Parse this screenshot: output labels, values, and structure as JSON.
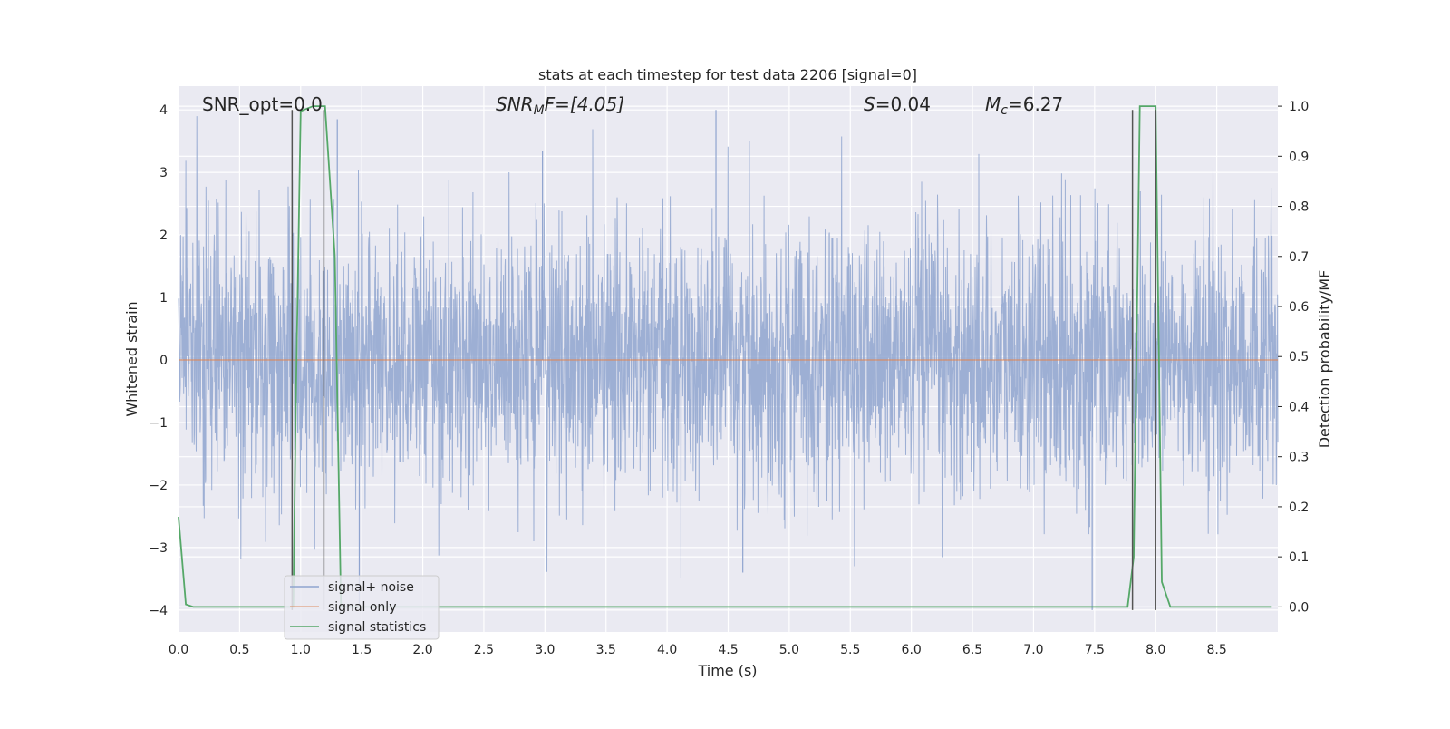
{
  "chart_data": {
    "type": "line",
    "title": "stats at each timestep for test data 2206 [signal=0]",
    "xlabel": "Time (s)",
    "ylabel": "Whitened strain",
    "y2label": "Detection probability/MF",
    "xlim": [
      0,
      9
    ],
    "ylim": [
      -4.35,
      4.38
    ],
    "y2lim": [
      -0.05,
      1.04
    ],
    "xticks": [
      "0.0",
      "0.5",
      "1.0",
      "1.5",
      "2.0",
      "2.5",
      "3.0",
      "3.5",
      "4.0",
      "4.5",
      "5.0",
      "5.5",
      "6.0",
      "6.5",
      "7.0",
      "7.5",
      "8.0",
      "8.5"
    ],
    "yticks": [
      "4",
      "3",
      "2",
      "1",
      "0",
      "−1",
      "−2",
      "−3",
      "−4"
    ],
    "y2ticks": [
      "1.0",
      "0.9",
      "0.8",
      "0.7",
      "0.6",
      "0.5",
      "0.4",
      "0.3",
      "0.2",
      "0.1",
      "0.0"
    ],
    "annotations": {
      "snr_opt": "SNR_opt=0.0",
      "snr_mf_base": "SNR",
      "snr_mf_sub": "M",
      "snr_mf_rest": "F=[4.05]",
      "s_base": "S",
      "s_rest": "=0.04",
      "mc_base": "M",
      "mc_sub": "c",
      "mc_rest": "=6.27"
    },
    "legend": {
      "placement": "lower-left",
      "entries": [
        "signal+ noise",
        "signal only",
        "signal statistics"
      ]
    },
    "grid": true,
    "series": [
      {
        "name": "signal+ noise",
        "color": "#8fa4cf",
        "description": "whitened strain noise, roughly Gaussian, peaks up to about 4 and down to about -4"
      },
      {
        "name": "signal only",
        "color": "#dd8452",
        "x": [
          0,
          9
        ],
        "y": [
          0,
          0
        ]
      },
      {
        "name": "signal statistics",
        "color": "#55a868",
        "axis": "right",
        "x": [
          0.0,
          0.06,
          0.12,
          0.18,
          0.5,
          0.9,
          0.94,
          0.96,
          1.0,
          1.1,
          1.2,
          1.28,
          1.33,
          1.36,
          1.5,
          5.0,
          7.5,
          7.77,
          7.82,
          7.87,
          7.92,
          8.0,
          8.05,
          8.12,
          8.5,
          8.95
        ],
        "y": [
          0.18,
          0.005,
          0.0,
          0.0,
          0.0,
          0.0,
          0.0,
          0.4,
          0.99,
          1.0,
          1.0,
          0.7,
          0.0,
          0.0,
          0.0,
          0.0,
          0.0,
          0.0,
          0.1,
          1.0,
          1.0,
          1.0,
          0.05,
          0.0,
          0.0,
          0.0
        ]
      }
    ],
    "vlines": [
      {
        "x": 0.93,
        "y_from": -4.0,
        "y_to": 4.0
      },
      {
        "x": 1.19,
        "y_from": -4.0,
        "y_to": 4.0
      },
      {
        "x": 7.81,
        "y_from": -4.0,
        "y_to": 4.0
      },
      {
        "x": 8.0,
        "y_from": -4.0,
        "y_to": 4.0
      }
    ],
    "colors": {
      "background": "#eaeaf2",
      "grid": "#ffffff",
      "vline": "#555555"
    }
  }
}
